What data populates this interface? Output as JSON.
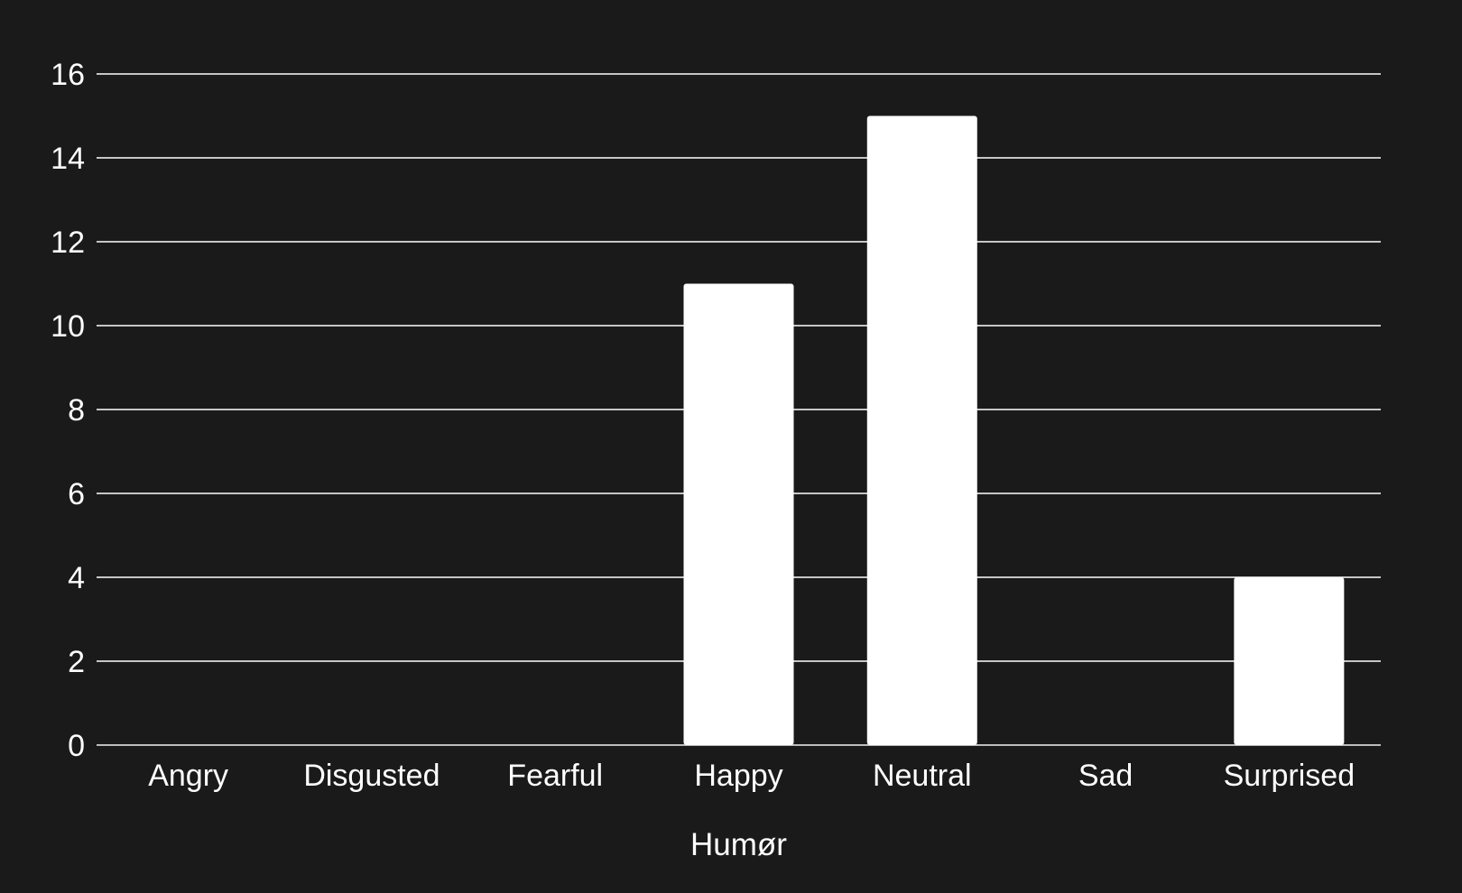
{
  "chart_data": {
    "type": "bar",
    "categories": [
      "Angry",
      "Disgusted",
      "Fearful",
      "Happy",
      "Neutral",
      "Sad",
      "Surprised"
    ],
    "values": [
      0,
      0,
      0,
      11,
      15,
      0,
      4
    ],
    "xlabel": "Humør",
    "ylabel": "",
    "ylim": [
      0,
      16
    ],
    "yticks": [
      0,
      2,
      4,
      6,
      8,
      10,
      12,
      14,
      16
    ],
    "grid": true,
    "legend": "none"
  },
  "colors": {
    "background": "#1a1a1a",
    "bar": "#ffffff",
    "grid": "#ffffff",
    "text": "#ffffff"
  }
}
